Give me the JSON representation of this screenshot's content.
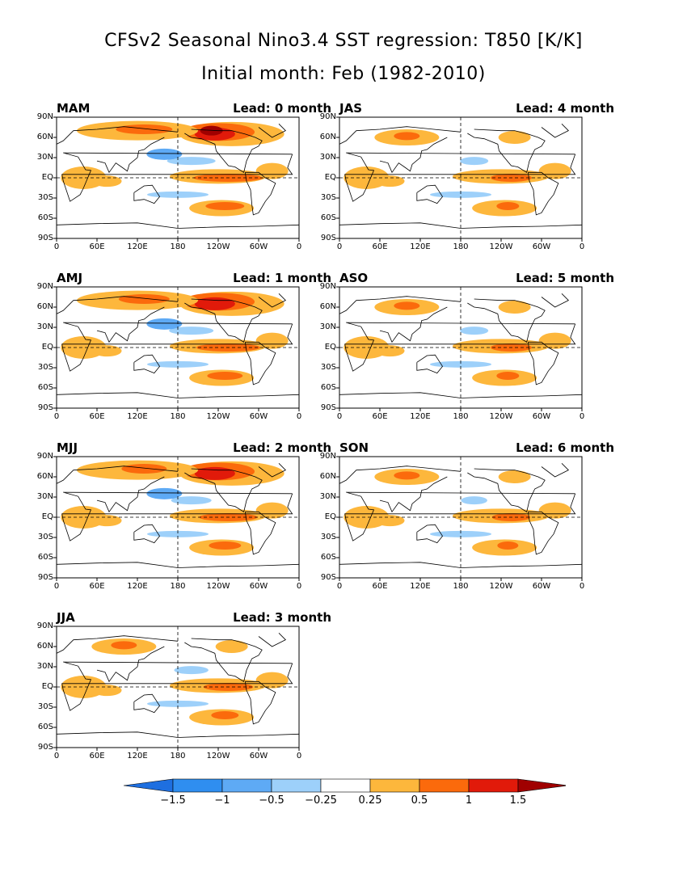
{
  "title": "CFSv2 Seasonal Nino3.4 SST regression: T850 [K/K]",
  "subtitle": "Initial month: Feb (1982-2010)",
  "lat_labels": [
    "90N",
    "60N",
    "30N",
    "EQ",
    "30S",
    "60S",
    "90S"
  ],
  "lon_labels": [
    "0",
    "60E",
    "120E",
    "180",
    "120W",
    "60W",
    "0"
  ],
  "panels": [
    {
      "season": "MAM",
      "lead": "Lead: 0 month",
      "strength": 1.0
    },
    {
      "season": "AMJ",
      "lead": "Lead: 1 month",
      "strength": 0.9
    },
    {
      "season": "MJJ",
      "lead": "Lead: 2 month",
      "strength": 0.8
    },
    {
      "season": "JJA",
      "lead": "Lead: 3 month",
      "strength": 0.65
    },
    {
      "season": "JAS",
      "lead": "Lead: 4 month",
      "strength": 0.5
    },
    {
      "season": "ASO",
      "lead": "Lead: 5 month",
      "strength": 0.5
    },
    {
      "season": "SON",
      "lead": "Lead: 6 month",
      "strength": 0.45
    }
  ],
  "colorbar": {
    "labels": [
      "-1.5",
      "-1",
      "-0.5",
      "-0.25",
      "0.25",
      "0.5",
      "1",
      "1.5"
    ],
    "colors": [
      "#1e6fe0",
      "#2f8ef0",
      "#5eaaf5",
      "#9dd0fa",
      "#ffffff",
      "#fdb73c",
      "#fb6a0c",
      "#e11a0a",
      "#a00000"
    ]
  },
  "colors": {
    "warm1": "#fdb73c",
    "warm2": "#fb6a0c",
    "warm3": "#e11a0a",
    "warm4": "#a00000",
    "cool1": "#9dd0fa",
    "cool2": "#5eaaf5"
  }
}
